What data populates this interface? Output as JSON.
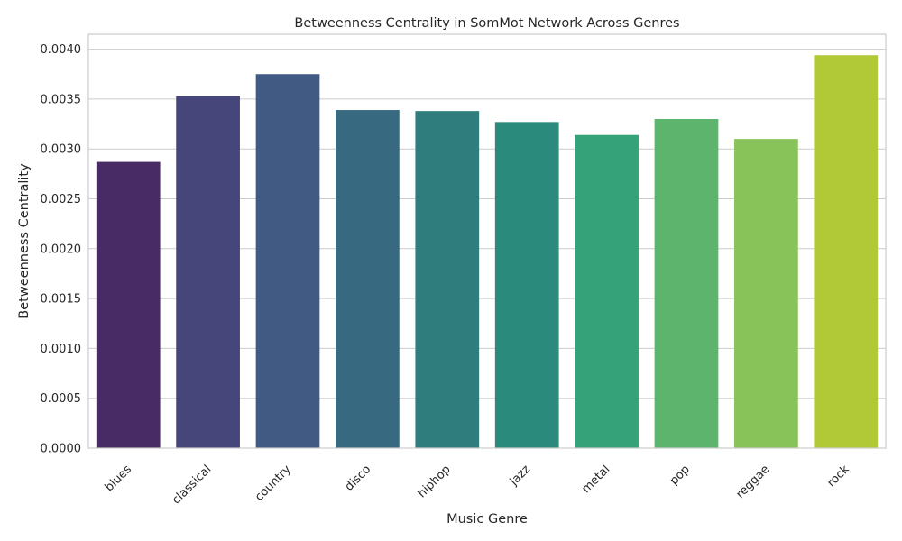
{
  "chart_data": {
    "type": "bar",
    "title": "Betweenness Centrality in SomMot Network Across Genres",
    "xlabel": "Music Genre",
    "ylabel": "Betweenness Centrality",
    "categories": [
      "blues",
      "classical",
      "country",
      "disco",
      "hiphop",
      "jazz",
      "metal",
      "pop",
      "reggae",
      "rock"
    ],
    "values": [
      0.00287,
      0.00353,
      0.00375,
      0.00339,
      0.00338,
      0.00327,
      0.00314,
      0.0033,
      0.0031,
      0.00394
    ],
    "colors": [
      "#482a65",
      "#47467b",
      "#405a83",
      "#376a80",
      "#2f7d7c",
      "#2a8a7b",
      "#36a27a",
      "#5db46c",
      "#88c35a",
      "#b1c937"
    ],
    "yticks": [
      0.0,
      0.0005,
      0.001,
      0.0015,
      0.002,
      0.0025,
      0.003,
      0.0035,
      0.004
    ],
    "ytick_labels": [
      "0.0000",
      "0.0005",
      "0.0010",
      "0.0015",
      "0.0020",
      "0.0025",
      "0.0030",
      "0.0035",
      "0.0040"
    ],
    "ylim": [
      0,
      0.00415
    ],
    "grid": true
  }
}
